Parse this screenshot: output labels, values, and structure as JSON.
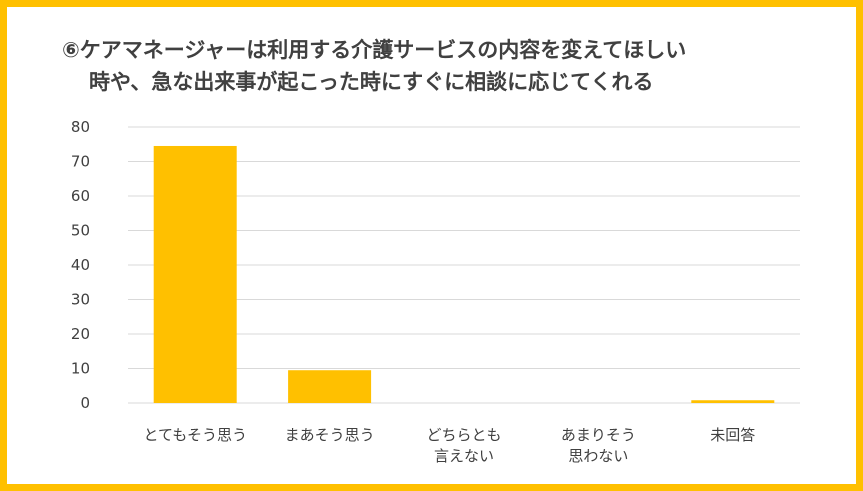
{
  "chart_data": {
    "type": "bar",
    "title_line1": "⑥ケアマネージャーは利用する介護サービスの内容を変えてほしい",
    "title_line2": "時や、急な出来事が起こった時にすぐに相談に応じてくれる",
    "categories": [
      [
        "とてもそう思う"
      ],
      [
        "まあそう思う"
      ],
      [
        "どちらとも",
        "言えない"
      ],
      [
        "あまりそう",
        "思わない"
      ],
      [
        "未回答"
      ]
    ],
    "values": [
      74.5,
      9.5,
      0,
      0,
      0.8
    ],
    "yticks": [
      0,
      10,
      20,
      30,
      40,
      50,
      60,
      70,
      80
    ],
    "ylim": [
      0,
      80
    ],
    "grid": true,
    "colors": {
      "bar": "#FFC000",
      "frame": "#FFC000",
      "grid": "#D9D9D9",
      "text": "#404040"
    }
  }
}
